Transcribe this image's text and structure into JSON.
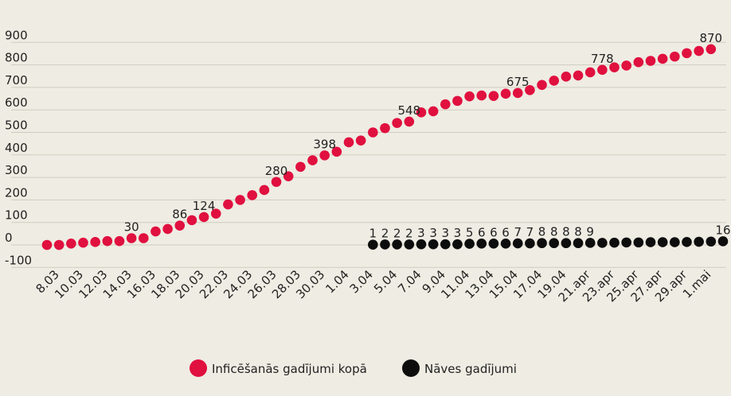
{
  "chart_data": {
    "type": "scatter",
    "colors": {
      "background": "#efece3",
      "grid": "#cfcbbf",
      "infected": "#e0103f",
      "deaths": "#0d0d0d"
    },
    "y_ticks": [
      -100,
      0,
      100,
      200,
      300,
      400,
      500,
      600,
      700,
      800,
      900
    ],
    "ylim": [
      -100,
      900
    ],
    "grid": true,
    "x_tick_labels": [
      "8.03",
      "10.03",
      "12.03",
      "14.03",
      "16.03",
      "18.03",
      "20.03",
      "22.03",
      "24.03",
      "26.03",
      "28.03",
      "30.03",
      "1.04",
      "3.04",
      "5.04",
      "7.04",
      "9.04",
      "11.04",
      "13.04",
      "15.04",
      "17.04",
      "19.04",
      "21.apr",
      "23.apr",
      "25.apr",
      "27.apr",
      "29.apr",
      "1.mai"
    ],
    "series": [
      {
        "name": "Inficēšanās gadījumi kopā",
        "color": "#e0103f",
        "start_index": 0,
        "values": [
          0,
          0,
          6,
          10,
          13,
          17,
          17,
          30,
          30,
          60,
          71,
          86,
          110,
          124,
          139,
          180,
          200,
          221,
          244,
          280,
          305,
          347,
          376,
          398,
          414,
          456,
          464,
          500,
          519,
          542,
          548,
          589,
          594,
          625,
          640,
          660,
          664,
          662,
          672,
          675,
          688,
          711,
          730,
          748,
          753,
          767,
          778,
          789,
          797,
          812,
          818,
          827,
          837,
          852,
          862,
          870
        ]
      },
      {
        "name": "Nāves gadījumi",
        "color": "#0d0d0d",
        "start_index": 27,
        "values": [
          1,
          2,
          2,
          2,
          3,
          3,
          3,
          3,
          5,
          6,
          6,
          6,
          7,
          7,
          8,
          8,
          8,
          8,
          9,
          9,
          10,
          11,
          11,
          12,
          12,
          12,
          13,
          14,
          15,
          16
        ]
      }
    ],
    "value_labels": [
      {
        "series": 0,
        "index": 7,
        "text": "30"
      },
      {
        "series": 0,
        "index": 11,
        "text": "86"
      },
      {
        "series": 0,
        "index": 13,
        "text": "124"
      },
      {
        "series": 0,
        "index": 19,
        "text": "280"
      },
      {
        "series": 0,
        "index": 23,
        "text": "398"
      },
      {
        "series": 0,
        "index": 30,
        "text": "548"
      },
      {
        "series": 0,
        "index": 39,
        "text": "675"
      },
      {
        "series": 0,
        "index": 46,
        "text": "778"
      },
      {
        "series": 0,
        "index": 55,
        "text": "870"
      },
      {
        "series": 1,
        "index": 27,
        "text": "1"
      },
      {
        "series": 1,
        "index": 28,
        "text": "2"
      },
      {
        "series": 1,
        "index": 29,
        "text": "2"
      },
      {
        "series": 1,
        "index": 30,
        "text": "2"
      },
      {
        "series": 1,
        "index": 31,
        "text": "3"
      },
      {
        "series": 1,
        "index": 32,
        "text": "3"
      },
      {
        "series": 1,
        "index": 33,
        "text": "3"
      },
      {
        "series": 1,
        "index": 34,
        "text": "3"
      },
      {
        "series": 1,
        "index": 35,
        "text": "5"
      },
      {
        "series": 1,
        "index": 36,
        "text": "6"
      },
      {
        "series": 1,
        "index": 37,
        "text": "6"
      },
      {
        "series": 1,
        "index": 38,
        "text": "6"
      },
      {
        "series": 1,
        "index": 39,
        "text": "7"
      },
      {
        "series": 1,
        "index": 40,
        "text": "7"
      },
      {
        "series": 1,
        "index": 41,
        "text": "8"
      },
      {
        "series": 1,
        "index": 42,
        "text": "8"
      },
      {
        "series": 1,
        "index": 43,
        "text": "8"
      },
      {
        "series": 1,
        "index": 44,
        "text": "8"
      },
      {
        "series": 1,
        "index": 45,
        "text": "9"
      },
      {
        "series": 1,
        "index": 56,
        "text": "16"
      }
    ],
    "legend": [
      {
        "label": "Inficēšanās gadījumi kopā",
        "color": "#e0103f"
      },
      {
        "label": "Nāves gadījumi",
        "color": "#0d0d0d"
      }
    ],
    "legend_position": "bottom"
  }
}
